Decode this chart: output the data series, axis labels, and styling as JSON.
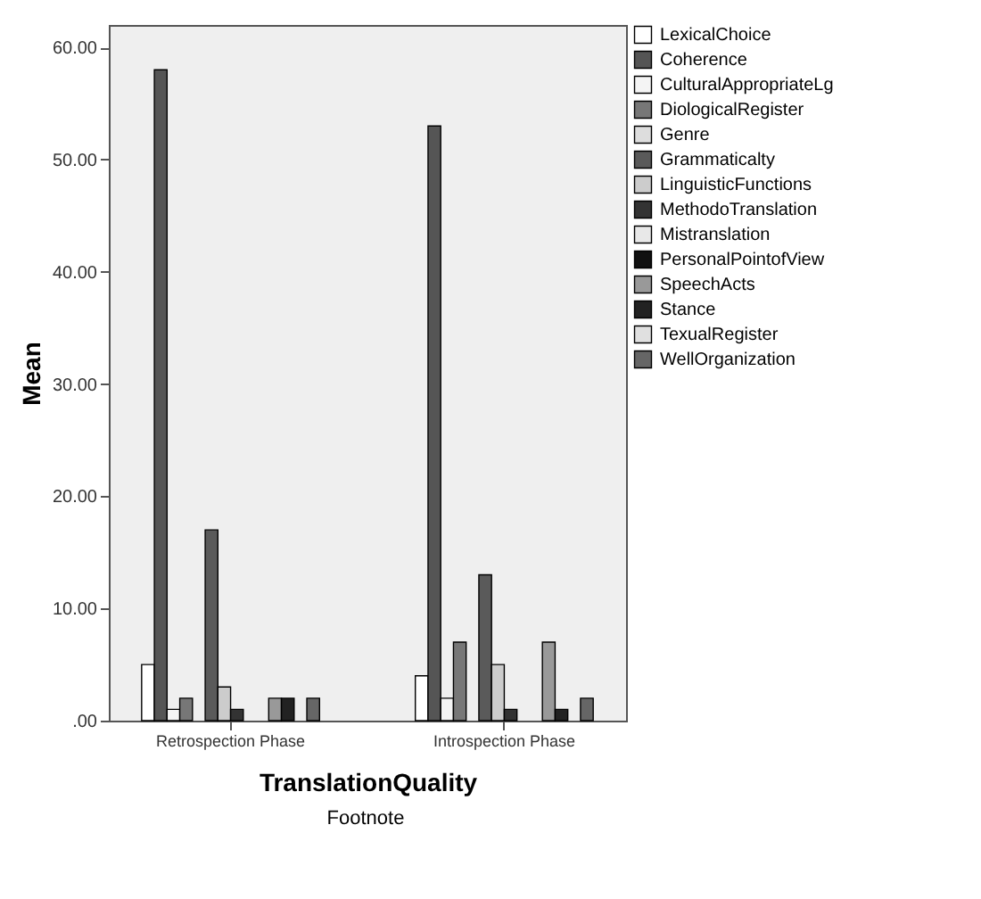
{
  "chart_data": {
    "type": "bar",
    "xlabel": "TranslationQuality",
    "ylabel": "Mean",
    "annotations": [
      "Footnote"
    ],
    "categories": [
      "Retrospection Phase",
      "Introspection Phase"
    ],
    "series": [
      {
        "name": "LexicalChoice",
        "color": "#ffffff",
        "values": [
          5,
          4
        ]
      },
      {
        "name": "Coherence",
        "color": "#555555",
        "values": [
          58,
          53
        ]
      },
      {
        "name": "CulturalAppropriateLg",
        "color": "#f4f4f4",
        "values": [
          1,
          2
        ]
      },
      {
        "name": "DiologicalRegister",
        "color": "#777777",
        "values": [
          2,
          7
        ]
      },
      {
        "name": "Genre",
        "color": "#dddddd",
        "values": [
          0,
          0
        ]
      },
      {
        "name": "Grammaticalty",
        "color": "#5a5a5a",
        "values": [
          17,
          13
        ]
      },
      {
        "name": "LinguisticFunctions",
        "color": "#cccccc",
        "values": [
          3,
          5
        ]
      },
      {
        "name": "MethodoTranslation",
        "color": "#333333",
        "values": [
          1,
          1
        ]
      },
      {
        "name": "Mistranslation",
        "color": "#e8e8e8",
        "values": [
          0,
          0
        ]
      },
      {
        "name": "PersonalPointofView",
        "color": "#111111",
        "values": [
          0,
          0
        ]
      },
      {
        "name": "SpeechActs",
        "color": "#999999",
        "values": [
          2,
          7
        ]
      },
      {
        "name": "Stance",
        "color": "#222222",
        "values": [
          2,
          1
        ]
      },
      {
        "name": "TexualRegister",
        "color": "#e0e0e0",
        "values": [
          0,
          0
        ]
      },
      {
        "name": "WellOrganization",
        "color": "#666666",
        "values": [
          2,
          2
        ]
      }
    ],
    "ylim": [
      0,
      62
    ],
    "yticks": [
      {
        "value": 0,
        "label": ".00"
      },
      {
        "value": 10,
        "label": "10.00"
      },
      {
        "value": 20,
        "label": "20.00"
      },
      {
        "value": 30,
        "label": "30.00"
      },
      {
        "value": 40,
        "label": "40.00"
      },
      {
        "value": 50,
        "label": "50.00"
      },
      {
        "value": 60,
        "label": "60.00"
      }
    ],
    "legend": "top right",
    "grid": false
  }
}
